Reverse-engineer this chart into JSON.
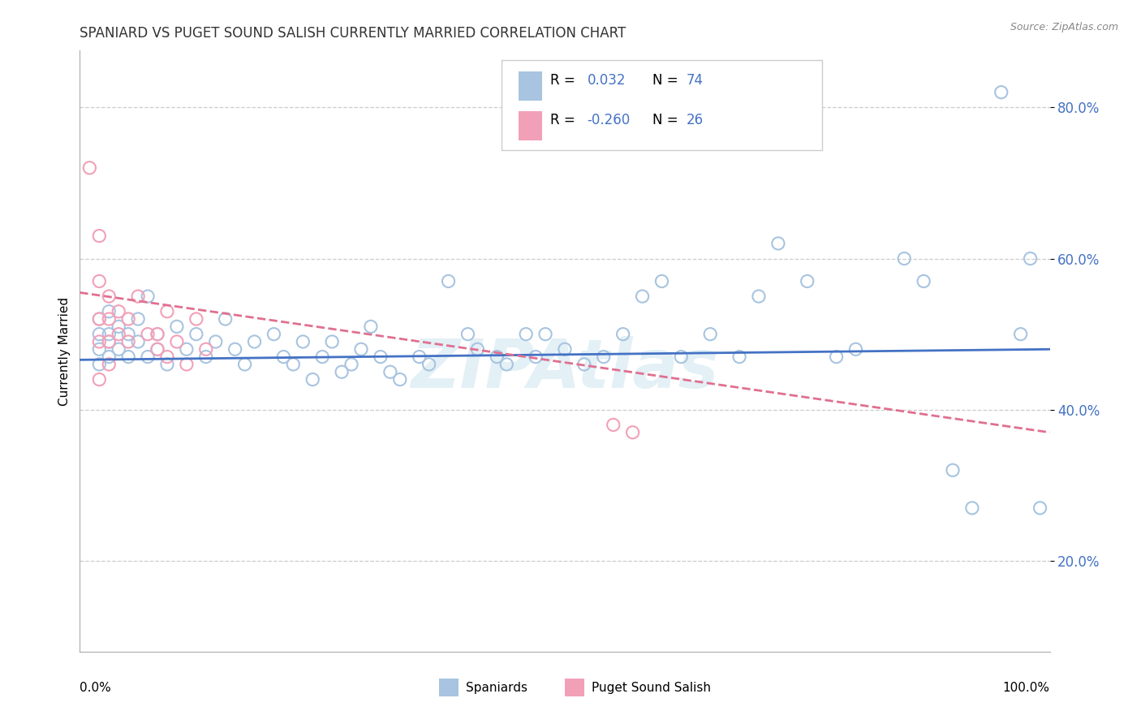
{
  "title": "SPANIARD VS PUGET SOUND SALISH CURRENTLY MARRIED CORRELATION CHART",
  "source_text": "Source: ZipAtlas.com",
  "ylabel": "Currently Married",
  "blue_color": "#a8c4e0",
  "pink_color": "#f2a0b8",
  "blue_line_color": "#4472c4",
  "pink_line_color": "#e07090",
  "blue_scatter_x": [
    0.02,
    0.02,
    0.02,
    0.02,
    0.03,
    0.03,
    0.03,
    0.03,
    0.04,
    0.04,
    0.05,
    0.05,
    0.06,
    0.06,
    0.07,
    0.07,
    0.08,
    0.08,
    0.09,
    0.1,
    0.11,
    0.12,
    0.13,
    0.14,
    0.15,
    0.16,
    0.17,
    0.18,
    0.2,
    0.21,
    0.22,
    0.23,
    0.24,
    0.25,
    0.26,
    0.27,
    0.28,
    0.29,
    0.3,
    0.31,
    0.32,
    0.33,
    0.35,
    0.36,
    0.38,
    0.4,
    0.41,
    0.43,
    0.44,
    0.46,
    0.47,
    0.48,
    0.5,
    0.52,
    0.54,
    0.56,
    0.58,
    0.6,
    0.62,
    0.65,
    0.68,
    0.7,
    0.72,
    0.75,
    0.78,
    0.8,
    0.85,
    0.87,
    0.9,
    0.92,
    0.95,
    0.97,
    0.98,
    0.99
  ],
  "blue_scatter_y": [
    0.5,
    0.48,
    0.52,
    0.46,
    0.53,
    0.5,
    0.47,
    0.49,
    0.51,
    0.48,
    0.47,
    0.5,
    0.52,
    0.49,
    0.55,
    0.47,
    0.5,
    0.48,
    0.46,
    0.51,
    0.48,
    0.5,
    0.47,
    0.49,
    0.52,
    0.48,
    0.46,
    0.49,
    0.5,
    0.47,
    0.46,
    0.49,
    0.44,
    0.47,
    0.49,
    0.45,
    0.46,
    0.48,
    0.51,
    0.47,
    0.45,
    0.44,
    0.47,
    0.46,
    0.57,
    0.5,
    0.48,
    0.47,
    0.46,
    0.5,
    0.47,
    0.5,
    0.48,
    0.46,
    0.47,
    0.5,
    0.55,
    0.57,
    0.47,
    0.5,
    0.47,
    0.55,
    0.62,
    0.57,
    0.47,
    0.48,
    0.6,
    0.57,
    0.32,
    0.27,
    0.82,
    0.5,
    0.6,
    0.27
  ],
  "pink_scatter_x": [
    0.01,
    0.02,
    0.02,
    0.02,
    0.02,
    0.02,
    0.03,
    0.03,
    0.03,
    0.03,
    0.04,
    0.04,
    0.05,
    0.05,
    0.06,
    0.07,
    0.08,
    0.08,
    0.09,
    0.09,
    0.1,
    0.11,
    0.12,
    0.13,
    0.55,
    0.57
  ],
  "pink_scatter_y": [
    0.72,
    0.63,
    0.57,
    0.52,
    0.49,
    0.44,
    0.55,
    0.52,
    0.49,
    0.46,
    0.53,
    0.5,
    0.52,
    0.49,
    0.55,
    0.5,
    0.5,
    0.48,
    0.53,
    0.47,
    0.49,
    0.46,
    0.52,
    0.48,
    0.38,
    0.37
  ],
  "blue_trendline": [
    0.0,
    1.0,
    0.466,
    0.48
  ],
  "pink_trendline": [
    0.0,
    1.0,
    0.555,
    0.37
  ],
  "ylim": [
    0.08,
    0.875
  ],
  "xlim": [
    0.0,
    1.0
  ],
  "ytick_vals": [
    0.2,
    0.4,
    0.6,
    0.8
  ],
  "ytick_labels": [
    "20.0%",
    "40.0%",
    "60.0%",
    "80.0%"
  ],
  "title_fontsize": 12,
  "legend_r1": "R = ",
  "legend_v1": "0.032",
  "legend_n1": "N = ",
  "legend_nv1": "74",
  "legend_r2": "R = ",
  "legend_v2": "-0.260",
  "legend_n2": "N = ",
  "legend_nv2": "26"
}
